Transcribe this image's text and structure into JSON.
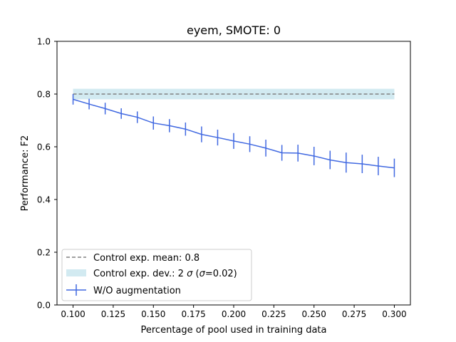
{
  "chart_data": {
    "type": "line",
    "title": "eyem, SMOTE: 0",
    "xlabel": "Percentage of pool used in training data",
    "ylabel": "Performance: F2",
    "xlim": [
      0.09,
      0.31
    ],
    "ylim": [
      0.0,
      1.0
    ],
    "xticks": [
      0.1,
      0.125,
      0.15,
      0.175,
      0.2,
      0.225,
      0.25,
      0.275,
      0.3
    ],
    "xtick_labels": [
      "0.100",
      "0.125",
      "0.150",
      "0.175",
      "0.200",
      "0.225",
      "0.250",
      "0.275",
      "0.300"
    ],
    "yticks": [
      0.0,
      0.2,
      0.4,
      0.6,
      0.8,
      1.0
    ],
    "ytick_labels": [
      "0.0",
      "0.2",
      "0.4",
      "0.6",
      "0.8",
      "1.0"
    ],
    "grid": false,
    "legend_position": "lower-left",
    "control": {
      "label": "Control exp. mean: 0.8",
      "mean": 0.8,
      "x_range": [
        0.1,
        0.3
      ],
      "color": "#808080"
    },
    "control_band": {
      "label_prefix": "Control exp. dev.: 2 ",
      "label_sigma": "σ",
      "label_open": " (",
      "label_sigma2": "σ",
      "label_close": "=0.02)",
      "lower": 0.78,
      "upper": 0.82,
      "x_range": [
        0.1,
        0.3
      ],
      "color": "#add8e6"
    },
    "series": [
      {
        "name": "W/O augmentation",
        "color": "#4169e1",
        "x": [
          0.1,
          0.11,
          0.12,
          0.13,
          0.14,
          0.15,
          0.16,
          0.17,
          0.18,
          0.19,
          0.2,
          0.21,
          0.22,
          0.23,
          0.24,
          0.25,
          0.26,
          0.27,
          0.28,
          0.29,
          0.3
        ],
        "y": [
          0.78,
          0.762,
          0.745,
          0.726,
          0.712,
          0.69,
          0.68,
          0.667,
          0.647,
          0.635,
          0.622,
          0.61,
          0.595,
          0.577,
          0.576,
          0.565,
          0.55,
          0.54,
          0.535,
          0.527,
          0.52
        ],
        "err": [
          0.02,
          0.02,
          0.022,
          0.02,
          0.022,
          0.025,
          0.025,
          0.025,
          0.03,
          0.03,
          0.03,
          0.03,
          0.032,
          0.03,
          0.032,
          0.035,
          0.035,
          0.038,
          0.035,
          0.035,
          0.035
        ]
      }
    ]
  }
}
